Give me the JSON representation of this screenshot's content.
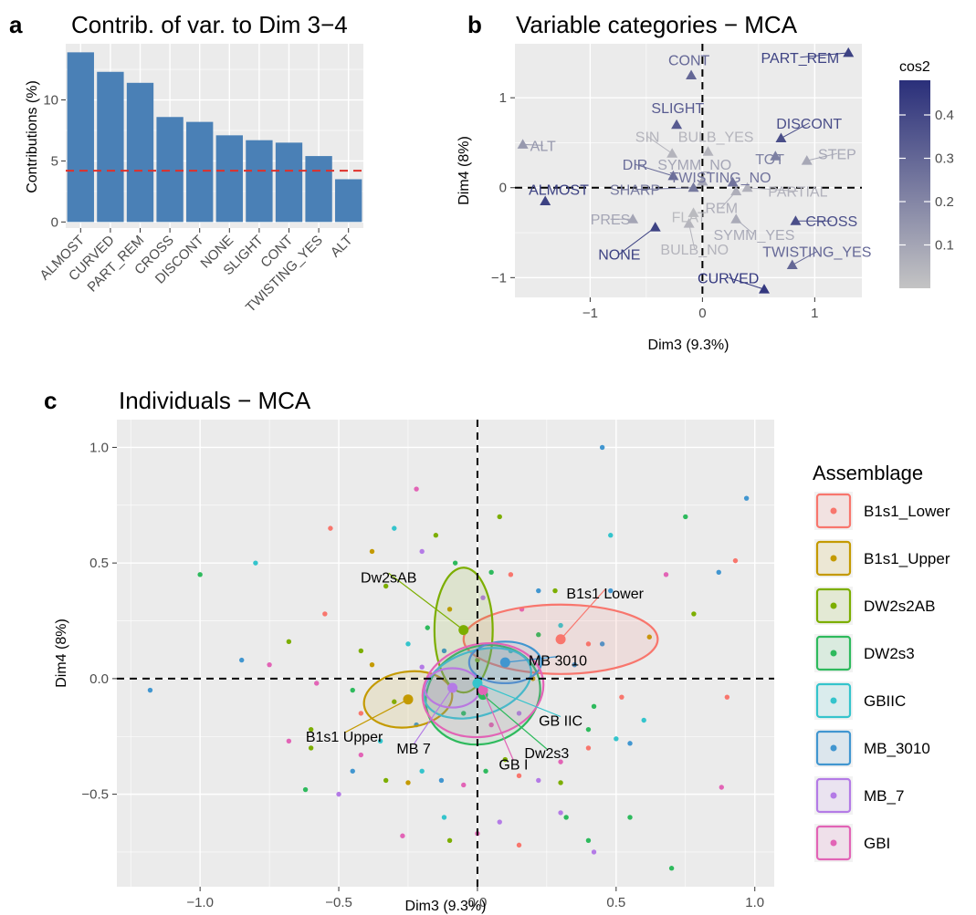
{
  "panels": {
    "a": {
      "letter": "a"
    },
    "b": {
      "letter": "b"
    },
    "c": {
      "letter": "c"
    }
  },
  "chart_data": [
    {
      "id": "a",
      "type": "bar",
      "title": "Contrib. of var. to Dim 3−4",
      "xlabel": "",
      "ylabel": "Contributions (%)",
      "categories": [
        "ALMOST",
        "CURVED",
        "PART_REM",
        "CROSS",
        "DISCONT",
        "NONE",
        "SLIGHT",
        "CONT",
        "TWISTING_YES",
        "ALT"
      ],
      "values": [
        13.9,
        12.3,
        11.4,
        8.6,
        8.2,
        7.1,
        6.7,
        6.5,
        5.4,
        3.5
      ],
      "reference_line": 4.2,
      "ylim": [
        -0.5,
        14.6
      ],
      "yticks": [
        0,
        5,
        10
      ],
      "bar_color": "#4a80b6",
      "reference_color": "#e0302a",
      "grid": true
    },
    {
      "id": "b",
      "type": "scatter",
      "title": "Variable categories − MCA",
      "xlabel": "Dim3 (9.3%)",
      "ylabel": "Dim4 (8%)",
      "xlim": [
        -1.67,
        1.42
      ],
      "ylim": [
        -1.22,
        1.6
      ],
      "xticks": [
        -1,
        0,
        1
      ],
      "yticks": [
        -1,
        0,
        1
      ],
      "color_legend_title": "cos2",
      "color_ticks": [
        0.1,
        0.2,
        0.3,
        0.4
      ],
      "color_range": [
        0.0,
        0.48
      ],
      "color_low": "#c4c4c4",
      "color_high": "#2a2f7a",
      "points": [
        {
          "label": "CONT",
          "x": -0.1,
          "y": 1.25,
          "cos2": 0.3,
          "lx": -0.12,
          "ly": 1.42
        },
        {
          "label": "PART_REM",
          "x": 1.3,
          "y": 1.5,
          "cos2": 0.42,
          "lx": 0.87,
          "ly": 1.45
        },
        {
          "label": "SLIGHT",
          "x": -0.23,
          "y": 0.7,
          "cos2": 0.34,
          "lx": -0.22,
          "ly": 0.89
        },
        {
          "label": "DISCONT",
          "x": 0.7,
          "y": 0.55,
          "cos2": 0.38,
          "lx": 0.95,
          "ly": 0.72
        },
        {
          "label": "ALT",
          "x": -1.6,
          "y": 0.48,
          "cos2": 0.14,
          "lx": -1.42,
          "ly": 0.47
        },
        {
          "label": "SIN",
          "x": -0.27,
          "y": 0.38,
          "cos2": 0.05,
          "lx": -0.49,
          "ly": 0.57
        },
        {
          "label": "BULB_YES",
          "x": 0.05,
          "y": 0.4,
          "cos2": 0.05,
          "lx": 0.12,
          "ly": 0.57
        },
        {
          "label": "TOT",
          "x": 0.65,
          "y": 0.35,
          "cos2": 0.22,
          "lx": 0.6,
          "ly": 0.32
        },
        {
          "label": "STEP",
          "x": 0.93,
          "y": 0.3,
          "cos2": 0.09,
          "lx": 1.2,
          "ly": 0.38
        },
        {
          "label": "DIR",
          "x": -0.26,
          "y": 0.13,
          "cos2": 0.28,
          "lx": -0.6,
          "ly": 0.26
        },
        {
          "label": "SYMM_NO",
          "x": 0.0,
          "y": 0.07,
          "cos2": 0.1,
          "lx": -0.07,
          "ly": 0.26
        },
        {
          "label": "TWISTING_NO",
          "x": 0.27,
          "y": 0.06,
          "cos2": 0.26,
          "lx": 0.16,
          "ly": 0.12
        },
        {
          "label": "ALMOST",
          "x": -1.4,
          "y": -0.15,
          "cos2": 0.42,
          "lx": -1.28,
          "ly": -0.02
        },
        {
          "label": "SHARP",
          "x": -0.08,
          "y": 0.0,
          "cos2": 0.24,
          "lx": -0.6,
          "ly": -0.02
        },
        {
          "label": "REM",
          "x": 0.3,
          "y": -0.04,
          "cos2": 0.07,
          "lx": 0.17,
          "ly": -0.22
        },
        {
          "label": "PARTIAL",
          "x": 0.4,
          "y": 0.0,
          "cos2": 0.06,
          "lx": 0.85,
          "ly": -0.04
        },
        {
          "label": "PRES",
          "x": -0.62,
          "y": -0.35,
          "cos2": 0.1,
          "lx": -0.82,
          "ly": -0.35
        },
        {
          "label": "FLAT",
          "x": -0.08,
          "y": -0.28,
          "cos2": 0.03,
          "lx": -0.12,
          "ly": -0.32
        },
        {
          "label": "SYMM_YES",
          "x": 0.3,
          "y": -0.35,
          "cos2": 0.08,
          "lx": 0.46,
          "ly": -0.52
        },
        {
          "label": "CROSS",
          "x": 0.83,
          "y": -0.37,
          "cos2": 0.38,
          "lx": 1.15,
          "ly": -0.37
        },
        {
          "label": "NONE",
          "x": -0.42,
          "y": -0.44,
          "cos2": 0.42,
          "lx": -0.74,
          "ly": -0.74
        },
        {
          "label": "BULB_NO",
          "x": -0.12,
          "y": -0.4,
          "cos2": 0.05,
          "lx": -0.07,
          "ly": -0.68
        },
        {
          "label": "TWISTING_YES",
          "x": 0.8,
          "y": -0.86,
          "cos2": 0.3,
          "lx": 1.02,
          "ly": -0.71
        },
        {
          "label": "CURVED",
          "x": 0.55,
          "y": -1.13,
          "cos2": 0.45,
          "lx": 0.23,
          "ly": -1.0
        }
      ]
    },
    {
      "id": "c",
      "type": "scatter",
      "title": "Individuals − MCA",
      "xlabel": "Dim3 (9.3%)",
      "ylabel": "Dim4 (8%)",
      "xlim": [
        -1.3,
        1.07
      ],
      "ylim": [
        -0.9,
        1.12
      ],
      "xticks": [
        -1.0,
        -0.5,
        0.0,
        0.5,
        1.0
      ],
      "xtick_labels": [
        "−1.0",
        "−0.5",
        "0.0",
        "0.5",
        "1.0"
      ],
      "yticks": [
        -0.5,
        0.0,
        0.5,
        1.0
      ],
      "ytick_labels": [
        "−0.5",
        "0.0",
        "0.5",
        "1.0"
      ],
      "legend_title": "Assemblage",
      "legend_position": "right",
      "groups": [
        {
          "name": "B1s1_Lower",
          "color": "#f8766d",
          "centroid": [
            0.3,
            0.17
          ],
          "ellipse": {
            "rx": 0.35,
            "ry": 0.15,
            "angle": 0
          },
          "label": "B1s1 Lower",
          "label_pos": [
            0.46,
            0.37
          ]
        },
        {
          "name": "B1s1_Upper",
          "color": "#c49a00",
          "centroid": [
            -0.25,
            -0.09
          ],
          "ellipse": {
            "rx": 0.16,
            "ry": 0.12,
            "angle": 8
          },
          "label": "B1s1 Upper",
          "label_pos": [
            -0.48,
            -0.25
          ]
        },
        {
          "name": "DW2s2AB",
          "color": "#7cae00",
          "centroid": [
            -0.05,
            0.21
          ],
          "ellipse": {
            "rx": 0.105,
            "ry": 0.27,
            "angle": 0
          },
          "label": "Dw2sAB",
          "label_pos": [
            -0.32,
            0.44
          ]
        },
        {
          "name": "DW2s3",
          "color": "#2eba5d",
          "centroid": [
            0.02,
            -0.07
          ],
          "ellipse": {
            "rx": 0.21,
            "ry": 0.21,
            "angle": 20
          },
          "label": "Dw2s3",
          "label_pos": [
            0.25,
            -0.32
          ]
        },
        {
          "name": "GBIIC",
          "color": "#34c4cc",
          "centroid": [
            0.0,
            -0.02
          ],
          "ellipse": {
            "rx": 0.2,
            "ry": 0.14,
            "angle": 18
          },
          "label": "GB IIC",
          "label_pos": [
            0.3,
            -0.18
          ]
        },
        {
          "name": "MB_3010",
          "color": "#4196d0",
          "centroid": [
            0.1,
            0.07
          ],
          "ellipse": {
            "rx": 0.13,
            "ry": 0.09,
            "angle": 0
          },
          "label": "MB 3010",
          "label_pos": [
            0.29,
            0.08
          ]
        },
        {
          "name": "MB_7",
          "color": "#b47be6",
          "centroid": [
            -0.09,
            -0.04
          ],
          "ellipse": {
            "rx": 0.1,
            "ry": 0.085,
            "angle": 0
          },
          "label": "MB 7",
          "label_pos": [
            -0.23,
            -0.3
          ]
        },
        {
          "name": "GBI",
          "color": "#e264b6",
          "centroid": [
            0.02,
            -0.05
          ],
          "ellipse": {
            "rx": 0.22,
            "ry": 0.2,
            "angle": 12
          },
          "label": "GB I",
          "label_pos": [
            0.13,
            -0.37
          ]
        }
      ],
      "points": [
        [
          0.45,
          1.0,
          5
        ],
        [
          0.97,
          0.78,
          5
        ],
        [
          -0.22,
          0.82,
          7
        ],
        [
          0.08,
          0.7,
          2
        ],
        [
          0.75,
          0.7,
          3
        ],
        [
          -0.3,
          0.65,
          4
        ],
        [
          -0.53,
          0.65,
          0
        ],
        [
          -0.15,
          0.62,
          2
        ],
        [
          0.48,
          0.62,
          4
        ],
        [
          -0.38,
          0.55,
          1
        ],
        [
          -0.2,
          0.55,
          6
        ],
        [
          -0.08,
          0.5,
          3
        ],
        [
          0.05,
          0.46,
          3
        ],
        [
          0.12,
          0.45,
          0
        ],
        [
          0.22,
          0.38,
          5
        ],
        [
          0.48,
          0.38,
          5
        ],
        [
          0.68,
          0.45,
          7
        ],
        [
          0.78,
          0.28,
          2
        ],
        [
          0.87,
          0.46,
          5
        ],
        [
          0.93,
          0.51,
          0
        ],
        [
          -1.0,
          0.45,
          3
        ],
        [
          -0.8,
          0.5,
          4
        ],
        [
          -0.55,
          0.28,
          0
        ],
        [
          -0.68,
          0.16,
          2
        ],
        [
          -0.75,
          0.06,
          7
        ],
        [
          -0.85,
          0.08,
          5
        ],
        [
          -1.18,
          -0.05,
          5
        ],
        [
          -0.6,
          -0.22,
          2
        ],
        [
          -0.6,
          -0.3,
          2
        ],
        [
          -0.68,
          -0.27,
          7
        ],
        [
          -0.42,
          0.12,
          2
        ],
        [
          -0.38,
          0.06,
          1
        ],
        [
          -0.45,
          -0.05,
          3
        ],
        [
          -0.42,
          -0.15,
          0
        ],
        [
          -0.35,
          -0.27,
          4
        ],
        [
          -0.45,
          -0.4,
          5
        ],
        [
          -0.33,
          -0.44,
          2
        ],
        [
          -0.25,
          -0.45,
          1
        ],
        [
          -0.2,
          -0.4,
          4
        ],
        [
          -0.13,
          -0.44,
          5
        ],
        [
          -0.05,
          -0.46,
          7
        ],
        [
          0.03,
          -0.4,
          3
        ],
        [
          0.1,
          -0.35,
          2
        ],
        [
          0.15,
          -0.42,
          0
        ],
        [
          0.22,
          -0.44,
          6
        ],
        [
          0.3,
          -0.36,
          7
        ],
        [
          0.4,
          -0.3,
          0
        ],
        [
          0.5,
          -0.26,
          4
        ],
        [
          0.55,
          -0.28,
          5
        ],
        [
          0.6,
          -0.18,
          4
        ],
        [
          0.52,
          -0.08,
          0
        ],
        [
          0.9,
          -0.08,
          0
        ],
        [
          0.42,
          -0.12,
          3
        ],
        [
          0.4,
          -0.22,
          3
        ],
        [
          0.3,
          -0.58,
          6
        ],
        [
          0.32,
          -0.6,
          3
        ],
        [
          0.4,
          -0.7,
          3
        ],
        [
          0.55,
          -0.6,
          3
        ],
        [
          0.7,
          -0.82,
          3
        ],
        [
          0.88,
          -0.47,
          7
        ],
        [
          0.42,
          -0.75,
          6
        ],
        [
          -0.12,
          -0.6,
          4
        ],
        [
          -0.1,
          -0.7,
          2
        ],
        [
          0.0,
          -0.67,
          7
        ],
        [
          0.08,
          -0.62,
          6
        ],
        [
          0.15,
          -0.72,
          0
        ],
        [
          -0.27,
          -0.68,
          7
        ],
        [
          -0.42,
          -0.33,
          7
        ],
        [
          -0.5,
          -0.5,
          6
        ],
        [
          -0.62,
          -0.48,
          3
        ],
        [
          0.22,
          0.19,
          3
        ],
        [
          0.3,
          0.23,
          4
        ],
        [
          0.4,
          0.15,
          0
        ],
        [
          0.35,
          0.06,
          5
        ],
        [
          0.16,
          0.3,
          7
        ],
        [
          0.02,
          0.35,
          6
        ],
        [
          -0.1,
          0.3,
          1
        ],
        [
          -0.18,
          0.22,
          3
        ],
        [
          -0.25,
          0.15,
          4
        ],
        [
          -0.2,
          0.05,
          6
        ],
        [
          -0.05,
          -0.15,
          3
        ],
        [
          0.05,
          -0.2,
          7
        ],
        [
          0.15,
          -0.15,
          6
        ],
        [
          0.2,
          0.0,
          1
        ],
        [
          -0.12,
          0.12,
          5
        ],
        [
          -0.3,
          -0.1,
          2
        ],
        [
          -0.22,
          -0.2,
          5
        ],
        [
          0.0,
          0.08,
          2
        ],
        [
          0.12,
          0.12,
          4
        ],
        [
          0.28,
          0.38,
          2
        ],
        [
          -0.33,
          0.4,
          2
        ],
        [
          0.45,
          0.15,
          5
        ],
        [
          0.62,
          0.18,
          1
        ],
        [
          -0.58,
          -0.02,
          7
        ],
        [
          0.3,
          -0.45,
          2
        ]
      ]
    }
  ]
}
